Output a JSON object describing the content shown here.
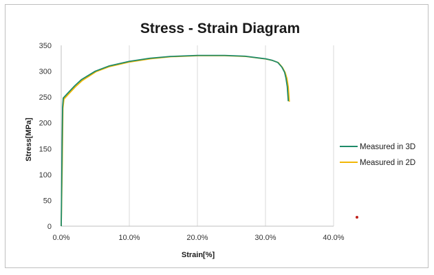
{
  "chart_data": {
    "type": "line",
    "title": "Stress - Strain Diagram",
    "xlabel": "Strain[%]",
    "ylabel": "Stress[MPa]",
    "xlim": [
      0,
      0.4
    ],
    "ylim": [
      0,
      350
    ],
    "x_ticks": [
      0,
      0.1,
      0.2,
      0.3,
      0.4
    ],
    "x_tick_labels": [
      "0.0%",
      "10.0%",
      "20.0%",
      "30.0%",
      "40.0%"
    ],
    "y_ticks": [
      0,
      50,
      100,
      150,
      200,
      250,
      300,
      350
    ],
    "y_tick_labels": [
      "0",
      "50",
      "100",
      "150",
      "200",
      "250",
      "300",
      "350"
    ],
    "grid": "vertical",
    "legend_position": "right",
    "series": [
      {
        "name": "Measured in 3D",
        "color": "#1e8a68",
        "points": [
          [
            0,
            0
          ],
          [
            0.001,
            120
          ],
          [
            0.002,
            230
          ],
          [
            0.003,
            248
          ],
          [
            0.01,
            258
          ],
          [
            0.02,
            272
          ],
          [
            0.03,
            284
          ],
          [
            0.05,
            300
          ],
          [
            0.07,
            310
          ],
          [
            0.1,
            319
          ],
          [
            0.13,
            325
          ],
          [
            0.16,
            328.5
          ],
          [
            0.2,
            330.5
          ],
          [
            0.24,
            330.5
          ],
          [
            0.27,
            329
          ],
          [
            0.3,
            324
          ],
          [
            0.31,
            321
          ],
          [
            0.318,
            317
          ],
          [
            0.324,
            308
          ],
          [
            0.328,
            298
          ],
          [
            0.33,
            287
          ],
          [
            0.332,
            270
          ],
          [
            0.3335,
            242
          ]
        ]
      },
      {
        "name": "Measured in 2D",
        "color": "#f2b705",
        "points": [
          [
            0,
            0
          ],
          [
            0.0015,
            120
          ],
          [
            0.0025,
            228
          ],
          [
            0.004,
            246
          ],
          [
            0.011,
            256
          ],
          [
            0.021,
            270
          ],
          [
            0.031,
            282
          ],
          [
            0.051,
            299
          ],
          [
            0.071,
            309
          ],
          [
            0.101,
            318
          ],
          [
            0.131,
            324
          ],
          [
            0.161,
            328
          ],
          [
            0.201,
            330
          ],
          [
            0.241,
            330
          ],
          [
            0.271,
            328.5
          ],
          [
            0.301,
            323.5
          ],
          [
            0.311,
            320.5
          ],
          [
            0.319,
            316.5
          ],
          [
            0.325,
            307
          ],
          [
            0.329,
            297
          ],
          [
            0.3315,
            286
          ],
          [
            0.3335,
            269
          ],
          [
            0.335,
            241
          ]
        ]
      }
    ]
  },
  "annotations": {
    "marker_color": "#c0201b"
  }
}
